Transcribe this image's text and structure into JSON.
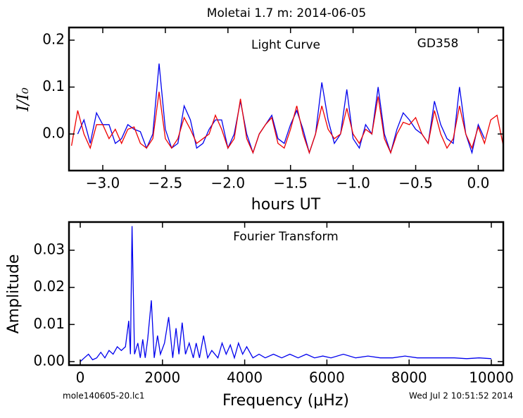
{
  "chart_data": [
    {
      "type": "line",
      "title": "Moletai 1.7 m:  2014-06-05",
      "annotation": "Light Curve",
      "annotation2": "GD358",
      "xlabel": "hours UT",
      "ylabel": "I/I₀",
      "x": [
        -3.25,
        -3.2,
        -3.15,
        -3.1,
        -3.05,
        -3.0,
        -2.95,
        -2.9,
        -2.85,
        -2.8,
        -2.75,
        -2.7,
        -2.65,
        -2.6,
        -2.55,
        -2.5,
        -2.45,
        -2.4,
        -2.35,
        -2.3,
        -2.25,
        -2.2,
        -2.15,
        -2.1,
        -2.05,
        -2.0,
        -1.95,
        -1.9,
        -1.85,
        -1.8,
        -1.75,
        -1.7,
        -1.65,
        -1.6,
        -1.55,
        -1.5,
        -1.45,
        -1.4,
        -1.35,
        -1.3,
        -1.25,
        -1.2,
        -1.15,
        -1.1,
        -1.05,
        -1.0,
        -0.95,
        -0.9,
        -0.85,
        -0.8,
        -0.75,
        -0.7,
        -0.65,
        -0.6,
        -0.55,
        -0.5,
        -0.45,
        -0.4,
        -0.35,
        -0.3,
        -0.25,
        -0.2,
        -0.15,
        -0.1,
        -0.05,
        0.0,
        0.05,
        0.1,
        0.15,
        0.2
      ],
      "series": [
        {
          "color": "#0000ee",
          "values": [
            null,
            0.0,
            0.03,
            -0.02,
            0.045,
            0.02,
            0.02,
            -0.02,
            -0.01,
            0.02,
            0.01,
            0.005,
            -0.03,
            0.0,
            0.15,
            0.01,
            -0.03,
            -0.02,
            0.06,
            0.03,
            -0.03,
            -0.02,
            0.01,
            0.03,
            0.03,
            -0.03,
            0.0,
            0.07,
            0.0,
            -0.04,
            0.0,
            0.02,
            0.04,
            -0.01,
            -0.02,
            0.02,
            0.05,
            0.01,
            -0.04,
            0.0,
            0.11,
            0.03,
            -0.02,
            0.0,
            0.095,
            -0.01,
            -0.03,
            0.02,
            0.0,
            0.1,
            0.0,
            -0.04,
            0.01,
            0.045,
            0.03,
            0.01,
            0.0,
            -0.02,
            0.07,
            0.02,
            -0.01,
            -0.02,
            0.1,
            0.0,
            -0.04,
            0.02,
            -0.01,
            null,
            null,
            null
          ]
        },
        {
          "color": "#ee0000",
          "values": [
            -0.025,
            0.05,
            0.0,
            -0.03,
            0.02,
            0.02,
            -0.01,
            0.01,
            -0.02,
            0.01,
            0.015,
            -0.02,
            -0.03,
            -0.01,
            0.09,
            -0.01,
            -0.03,
            -0.01,
            0.035,
            0.01,
            -0.02,
            -0.01,
            0.0,
            0.04,
            0.01,
            -0.03,
            -0.01,
            0.075,
            -0.01,
            -0.04,
            0.0,
            0.02,
            0.035,
            -0.02,
            -0.03,
            0.01,
            0.06,
            0.0,
            -0.04,
            0.0,
            0.06,
            0.01,
            -0.01,
            0.0,
            0.055,
            0.0,
            -0.02,
            0.01,
            0.0,
            0.08,
            -0.01,
            -0.04,
            0.0,
            0.025,
            0.02,
            0.035,
            0.0,
            -0.02,
            0.05,
            0.0,
            -0.03,
            -0.01,
            0.06,
            0.0,
            -0.03,
            0.015,
            -0.02,
            0.03,
            0.04,
            -0.025
          ]
        }
      ],
      "xlim": [
        -3.27,
        0.2
      ],
      "ylim": [
        -0.078,
        0.227
      ],
      "xticks": [
        {
          "value": -3,
          "label": "−3.0"
        },
        {
          "value": -2.5,
          "label": "−2.5"
        },
        {
          "value": -2,
          "label": "−2.0"
        },
        {
          "value": -1.5,
          "label": "−1.5"
        },
        {
          "value": -1,
          "label": "−1.0"
        },
        {
          "value": -0.5,
          "label": "−0.5"
        },
        {
          "value": 0,
          "label": "0.0"
        }
      ],
      "yticks": [
        {
          "value": 0,
          "label": "0.0"
        },
        0.1,
        0.2
      ]
    },
    {
      "type": "line",
      "annotation": "Fourier Transform",
      "xlabel": "Frequency (μHz)",
      "ylabel": "Amplitude",
      "x": [
        0,
        100,
        200,
        300,
        400,
        500,
        600,
        700,
        800,
        900,
        1000,
        1100,
        1180,
        1220,
        1260,
        1320,
        1400,
        1460,
        1520,
        1580,
        1640,
        1730,
        1800,
        1880,
        1950,
        2050,
        2150,
        2250,
        2330,
        2400,
        2480,
        2560,
        2650,
        2750,
        2820,
        2900,
        3000,
        3100,
        3200,
        3350,
        3450,
        3550,
        3650,
        3750,
        3850,
        3950,
        4050,
        4200,
        4350,
        4500,
        4700,
        4900,
        5100,
        5300,
        5500,
        5700,
        5900,
        6100,
        6400,
        6700,
        7000,
        7300,
        7600,
        7900,
        8200,
        8500,
        8800,
        9100,
        9400,
        9700,
        10000
      ],
      "series": [
        {
          "color": "#0000ee",
          "values": [
            0.0,
            0.001,
            0.002,
            0.0005,
            0.001,
            0.0025,
            0.001,
            0.003,
            0.002,
            0.004,
            0.003,
            0.004,
            0.011,
            0.002,
            0.0365,
            0.002,
            0.005,
            0.001,
            0.006,
            0.001,
            0.006,
            0.0165,
            0.001,
            0.007,
            0.002,
            0.005,
            0.012,
            0.001,
            0.009,
            0.002,
            0.0105,
            0.002,
            0.005,
            0.001,
            0.005,
            0.001,
            0.007,
            0.001,
            0.003,
            0.001,
            0.005,
            0.002,
            0.0045,
            0.001,
            0.005,
            0.002,
            0.004,
            0.001,
            0.002,
            0.001,
            0.002,
            0.001,
            0.002,
            0.001,
            0.002,
            0.001,
            0.0015,
            0.001,
            0.002,
            0.001,
            0.0015,
            0.001,
            0.001,
            0.0015,
            0.001,
            0.001,
            0.001,
            0.001,
            0.0008,
            0.001,
            0.0008
          ]
        }
      ],
      "xlim": [
        -274,
        10291
      ],
      "ylim": [
        -0.00095,
        0.0376
      ],
      "xticks": [
        0,
        2000,
        4000,
        6000,
        8000,
        10000
      ],
      "yticks": [
        {
          "value": 0,
          "label": "0.00"
        },
        {
          "value": 0.01,
          "label": "0.01"
        },
        {
          "value": 0.02,
          "label": "0.02"
        },
        {
          "value": 0.03,
          "label": "0.03"
        }
      ]
    }
  ],
  "footer": {
    "left": "mole140605-20.lc1",
    "right": "Wed Jul  2 10:51:52 2014"
  }
}
